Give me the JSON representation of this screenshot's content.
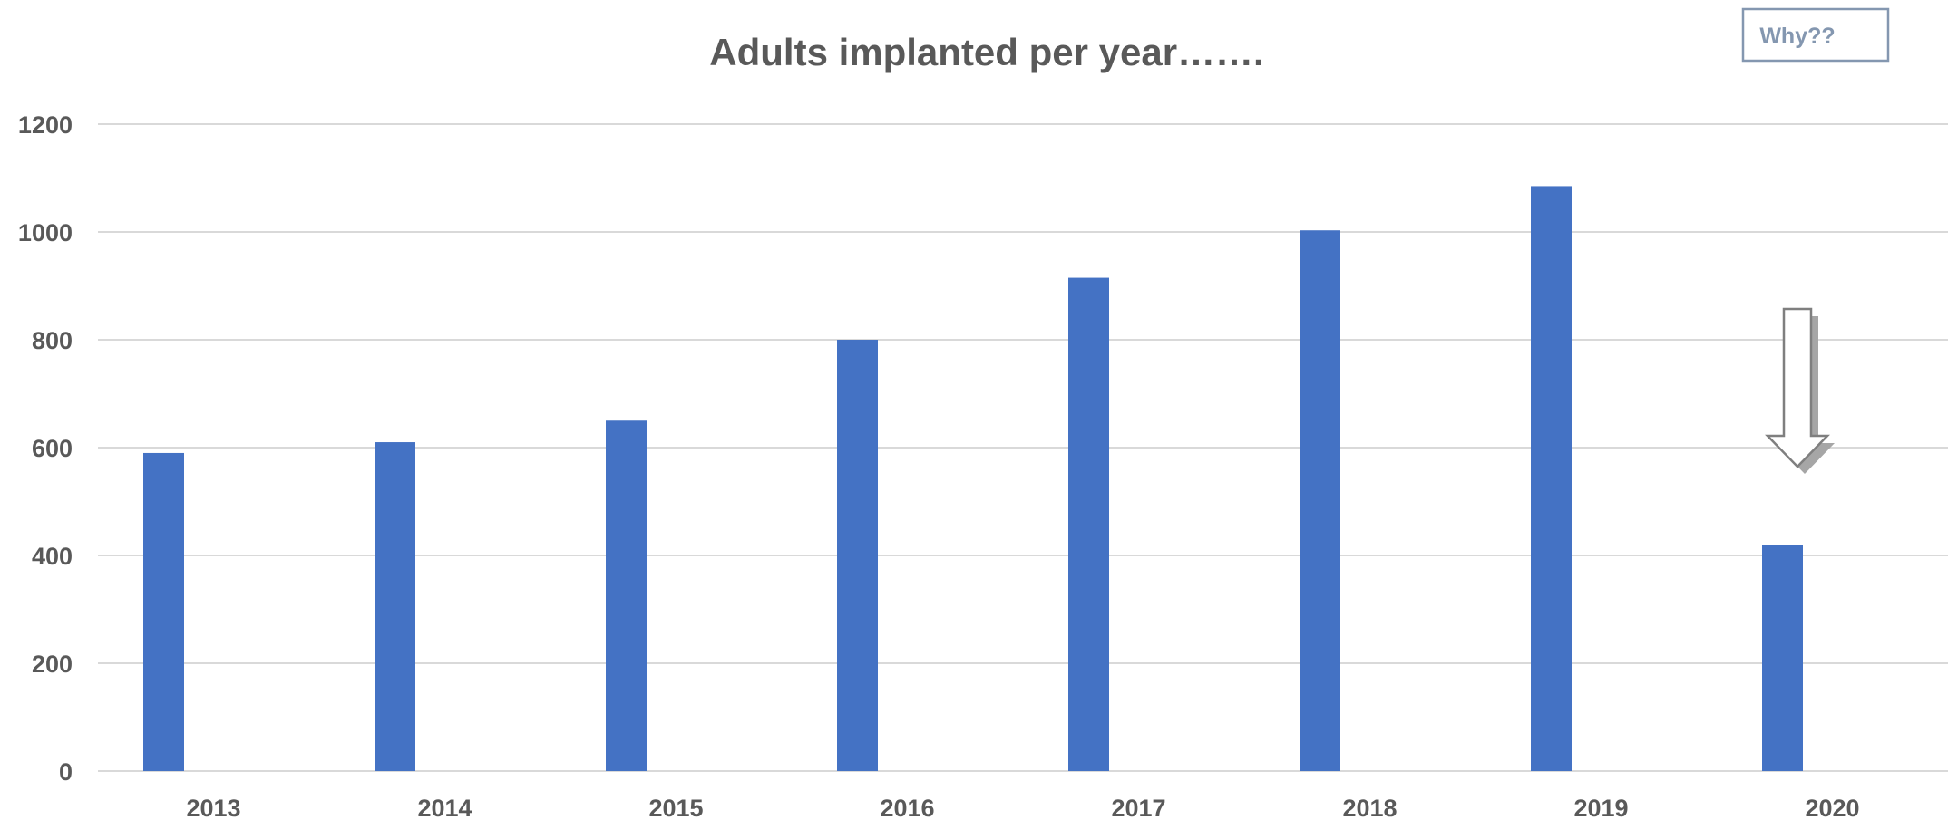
{
  "chart_data": {
    "type": "bar",
    "title": "Adults implanted per year…….",
    "xlabel": "",
    "ylabel": "",
    "categories": [
      "2013",
      "2014",
      "2015",
      "2016",
      "2017",
      "2018",
      "2019",
      "2020"
    ],
    "values": [
      590,
      610,
      650,
      800,
      915,
      1003,
      1085,
      420
    ],
    "ylim": [
      0,
      1200
    ],
    "yticks": [
      0,
      200,
      400,
      600,
      800,
      1000,
      1200
    ],
    "grid": true,
    "legend": "none",
    "bar_color": "#4472c4",
    "annotations": {
      "callout_text": "Why??",
      "arrow": "down-arrow-icon"
    }
  }
}
